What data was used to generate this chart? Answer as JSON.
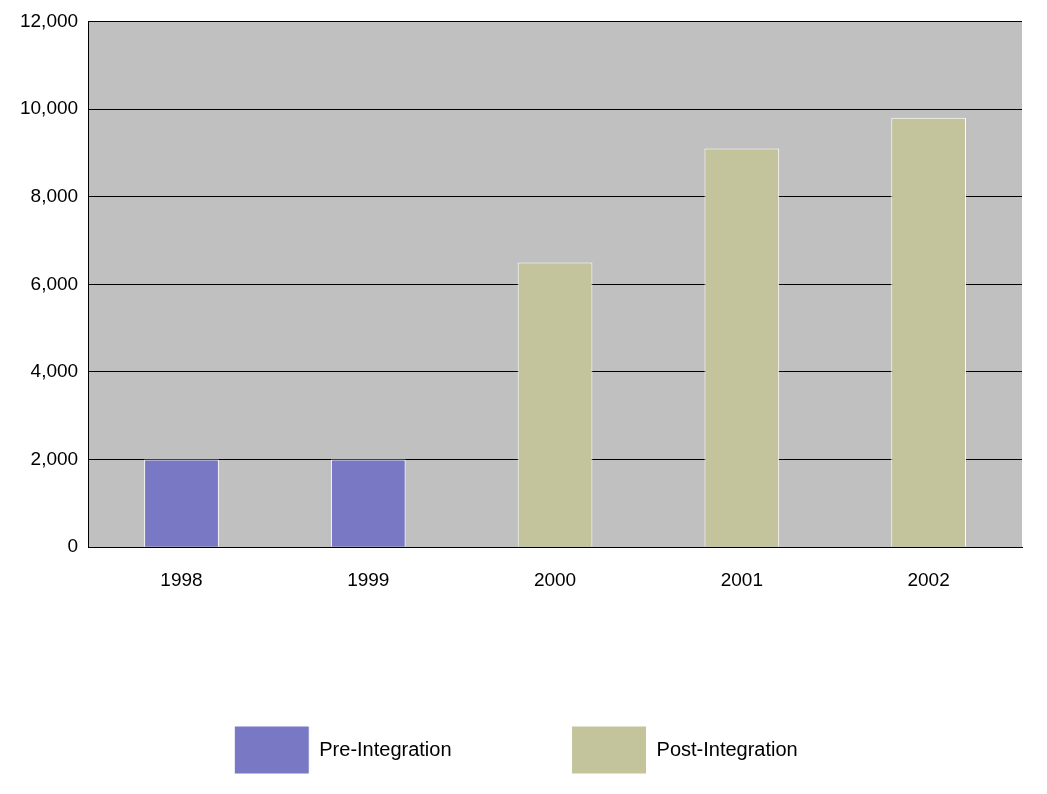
{
  "chart_data": {
    "type": "bar",
    "categories": [
      "1998",
      "1999",
      "2000",
      "2001",
      "2002"
    ],
    "series": [
      {
        "name": "Pre-Integration",
        "color": "#7878c4",
        "values": [
          2000,
          2000,
          null,
          null,
          null
        ]
      },
      {
        "name": "Post-Integration",
        "color": "#c3c49c",
        "values": [
          null,
          null,
          6500,
          9100,
          9800
        ]
      }
    ],
    "ylim": [
      0,
      12000
    ],
    "yticks": [
      0,
      {
        "value": 2000,
        "label": "2,000"
      },
      {
        "value": 4000,
        "label": "4,000"
      },
      {
        "value": 6000,
        "label": "6,000"
      },
      {
        "value": 8000,
        "label": "8,000"
      },
      {
        "value": 10000,
        "label": "10,000"
      },
      {
        "value": 12000,
        "label": "12,000"
      }
    ],
    "grid": "y",
    "legend": "bottom"
  }
}
